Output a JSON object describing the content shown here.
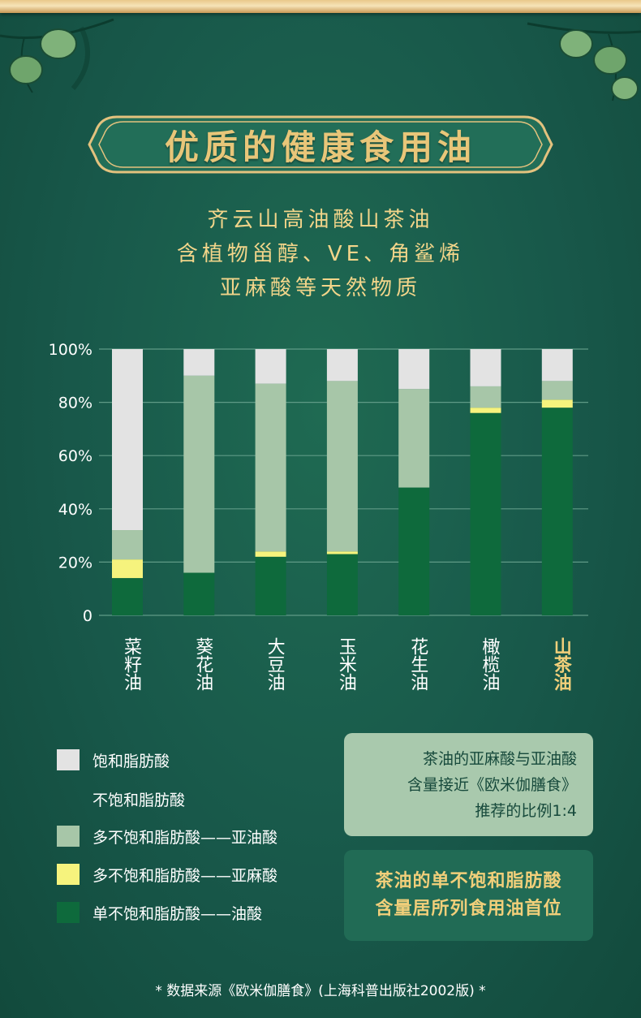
{
  "title": "优质的健康食用油",
  "subtitle_lines": [
    "齐云山高油酸山茶油",
    "含植物甾醇、VE、角鲨烯",
    "亚麻酸等天然物质"
  ],
  "colors": {
    "saturated": "#e3e3e3",
    "linoleic": "#a7c6a8",
    "linolenic": "#f6f37d",
    "oleic": "#0e6a3c",
    "accent": "#f1cf7a"
  },
  "chart_data": {
    "type": "bar",
    "stacked": true,
    "categories": [
      "菜籽油",
      "葵花油",
      "大豆油",
      "玉米油",
      "花生油",
      "橄榄油",
      "山茶油"
    ],
    "highlight_category": "山茶油",
    "y_ticks": [
      "0",
      "20%",
      "40%",
      "60%",
      "80%",
      "100%"
    ],
    "ylim": [
      0,
      100
    ],
    "grid": true,
    "series": [
      {
        "name": "单不饱和脂肪酸——油酸",
        "color": "#0e6a3c",
        "values": [
          14,
          16,
          22,
          23,
          48,
          76,
          78
        ]
      },
      {
        "name": "多不饱和脂肪酸——亚麻酸",
        "color": "#f6f37d",
        "values": [
          7,
          0,
          2,
          1,
          0,
          2,
          3
        ]
      },
      {
        "name": "多不饱和脂肪酸——亚油酸",
        "color": "#a7c6a8",
        "values": [
          11,
          74,
          63,
          64,
          37,
          8,
          7
        ]
      },
      {
        "name": "饱和脂肪酸",
        "color": "#e3e3e3",
        "values": [
          68,
          10,
          13,
          12,
          15,
          14,
          12
        ]
      }
    ]
  },
  "legend": [
    {
      "label": "饱和脂肪酸",
      "color": "#e3e3e3"
    },
    {
      "label": "不饱和脂肪酸",
      "color": ""
    },
    {
      "label": "多不饱和脂肪酸——亚油酸",
      "color": "#a7c6a8"
    },
    {
      "label": "多不饱和脂肪酸——亚麻酸",
      "color": "#f6f37d"
    },
    {
      "label": "单不饱和脂肪酸——油酸",
      "color": "#0e6a3c"
    }
  ],
  "note_lines": [
    "茶油的亚麻酸与亚油酸",
    "含量接近《欧米伽膳食》",
    "推荐的比例1:4"
  ],
  "highlight_lines": [
    "茶油的单不饱和脂肪酸",
    "含量居所列食用油首位"
  ],
  "source": "* 数据来源《欧米伽膳食》(上海科普出版社2002版) *"
}
